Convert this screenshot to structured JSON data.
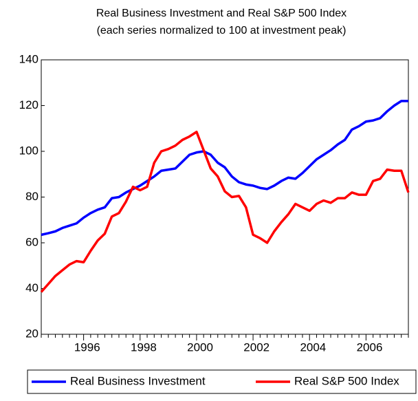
{
  "chart_data": {
    "type": "line",
    "title": "Real Business Investment and Real S&P 500 Index",
    "subtitle": "(each series normalized to 100 at investment peak)",
    "categories": [
      null,
      null,
      null,
      null,
      null,
      null,
      "1996",
      null,
      null,
      null,
      null,
      null,
      null,
      null,
      "1998",
      null,
      null,
      null,
      null,
      null,
      null,
      null,
      "2000",
      null,
      null,
      null,
      null,
      null,
      null,
      null,
      "2002",
      null,
      null,
      null,
      null,
      null,
      null,
      null,
      "2004",
      null,
      null,
      null,
      null,
      null,
      null,
      null,
      "2006",
      null,
      null,
      null,
      null,
      null,
      null
    ],
    "series": [
      {
        "name": "Real Business Investment",
        "color": "#0000ff",
        "values": [
          63.5,
          64.2,
          65,
          66.5,
          67.5,
          68.5,
          71,
          73,
          74.5,
          75.5,
          79.5,
          80,
          82,
          83.5,
          85,
          87,
          89,
          91.5,
          92,
          92.5,
          95.5,
          98.5,
          99.5,
          100,
          98.5,
          95,
          93,
          89,
          86.5,
          85.5,
          85,
          84,
          83.5,
          85,
          87,
          88.5,
          88,
          90.5,
          93.5,
          96.5,
          98.5,
          100.5,
          103,
          105,
          109.5,
          111,
          113,
          113.5,
          114.5,
          117.5,
          120,
          122,
          122
        ]
      },
      {
        "name": "Real S&P 500 Index",
        "color": "#ff0000",
        "values": [
          38.5,
          42,
          45.5,
          48,
          50.5,
          52,
          51.5,
          56.5,
          61,
          64,
          71.5,
          73,
          78,
          84.5,
          83,
          84.5,
          95,
          100,
          101,
          102.5,
          105,
          106.5,
          108.5,
          100.5,
          92.5,
          89,
          82.5,
          80,
          80.5,
          75.5,
          63.5,
          62,
          60,
          65,
          69,
          72.5,
          77,
          75.5,
          74,
          77,
          78.5,
          77.5,
          79.5,
          79.5,
          82,
          81,
          81,
          87,
          88,
          92,
          91.5,
          91.5,
          82
        ]
      }
    ],
    "ylim": [
      20,
      140
    ],
    "yticks": [
      20,
      40,
      60,
      80,
      100,
      120,
      140
    ],
    "grid": false,
    "legend": "bottom"
  }
}
